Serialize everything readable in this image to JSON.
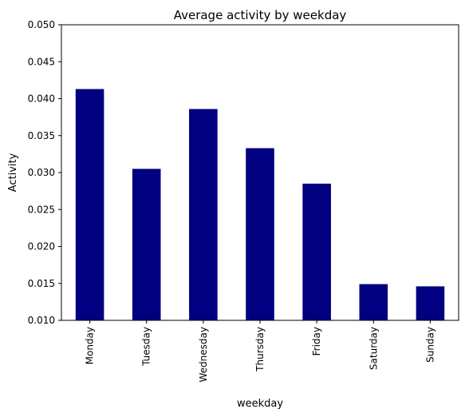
{
  "chart_data": {
    "type": "bar",
    "title": "Average activity by weekday",
    "xlabel": "weekday",
    "ylabel": "Activity",
    "categories": [
      "Monday",
      "Tuesday",
      "Wednesday",
      "Thursday",
      "Friday",
      "Saturday",
      "Sunday"
    ],
    "values": [
      0.0413,
      0.0305,
      0.0386,
      0.0333,
      0.0285,
      0.0149,
      0.0146
    ],
    "ylim": [
      0.01,
      0.05
    ],
    "yticks": [
      "0.010",
      "0.015",
      "0.020",
      "0.025",
      "0.030",
      "0.035",
      "0.040",
      "0.045",
      "0.050"
    ],
    "bar_color": "#000080",
    "grid": false,
    "legend": "none"
  }
}
